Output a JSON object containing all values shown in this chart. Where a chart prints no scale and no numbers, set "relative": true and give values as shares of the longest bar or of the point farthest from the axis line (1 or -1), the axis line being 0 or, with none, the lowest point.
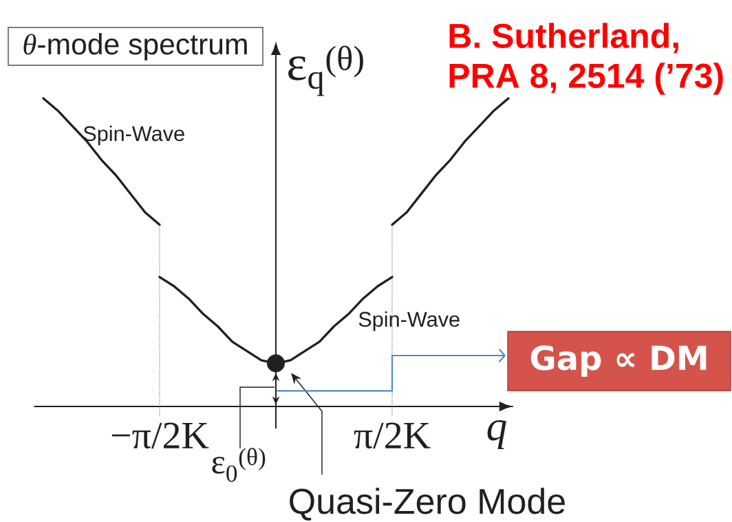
{
  "chart_data": {
    "type": "line",
    "title": "*θ*-mode spectrum",
    "xlabel": "q",
    "ylabel": "ε$_{q}$$^{(θ)}$",
    "relative": true,
    "categories": [
      null,
      null,
      null,
      null,
      null,
      null,
      null,
      null,
      "−π/2K",
      null,
      null,
      null,
      null,
      null,
      null,
      null,
      null,
      null,
      null,
      null,
      null,
      null,
      null,
      null,
      "π/2K",
      null,
      null,
      null,
      null,
      null,
      null,
      null,
      null
    ],
    "series": [
      {
        "color": "#231f20",
        "values": [
          1,
          0.96,
          0.91,
          0.86,
          0.8,
          0.75,
          0.69,
          0.63,
          0.59,
          null,
          null,
          null,
          null,
          null,
          null,
          null,
          null,
          null,
          null,
          null,
          null,
          null,
          null,
          null,
          null,
          null,
          null,
          null,
          null,
          null,
          null,
          null,
          null
        ]
      },
      {
        "color": "#231f20",
        "values": [
          null,
          null,
          null,
          null,
          null,
          null,
          null,
          null,
          0.42,
          0.39,
          0.35,
          0.3,
          0.26,
          0.21,
          0.18,
          0.15,
          0.14,
          0.15,
          0.18,
          0.21,
          0.26,
          0.3,
          0.35,
          0.39,
          0.42,
          null,
          null,
          null,
          null,
          null,
          null,
          null,
          null
        ]
      },
      {
        "color": "#231f20",
        "values": [
          null,
          null,
          null,
          null,
          null,
          null,
          null,
          null,
          null,
          null,
          null,
          null,
          null,
          null,
          null,
          null,
          null,
          null,
          null,
          null,
          null,
          null,
          null,
          null,
          0.59,
          0.63,
          0.69,
          0.75,
          0.8,
          0.86,
          0.91,
          0.96,
          1
        ]
      },
      {
        "type": "scatter",
        "marker": "circle",
        "color": "#231f20",
        "values": [
          null,
          null,
          null,
          null,
          null,
          null,
          null,
          null,
          null,
          null,
          null,
          null,
          null,
          null,
          null,
          null,
          0.14,
          null,
          null,
          null,
          null,
          null,
          null,
          null,
          null,
          null,
          null,
          null,
          null,
          null,
          null,
          null,
          null
        ]
      }
    ],
    "ref_lines": [
      {
        "axis": "x",
        "value": "−π/2K",
        "color": "#9a9a9a",
        "line_style": "dotted"
      },
      {
        "axis": "x",
        "value": "π/2K",
        "color": "#9a9a9a",
        "line_style": "dotted"
      }
    ],
    "annotations": [
      "B. Sutherland, PRA 8, 2514 (’73)",
      "Spin-Wave",
      "Spin-Wave",
      "ε$_{0}$$^{(θ)}$",
      "Quasi-Zero Mode",
      "Gap ∝ DM"
    ]
  }
}
